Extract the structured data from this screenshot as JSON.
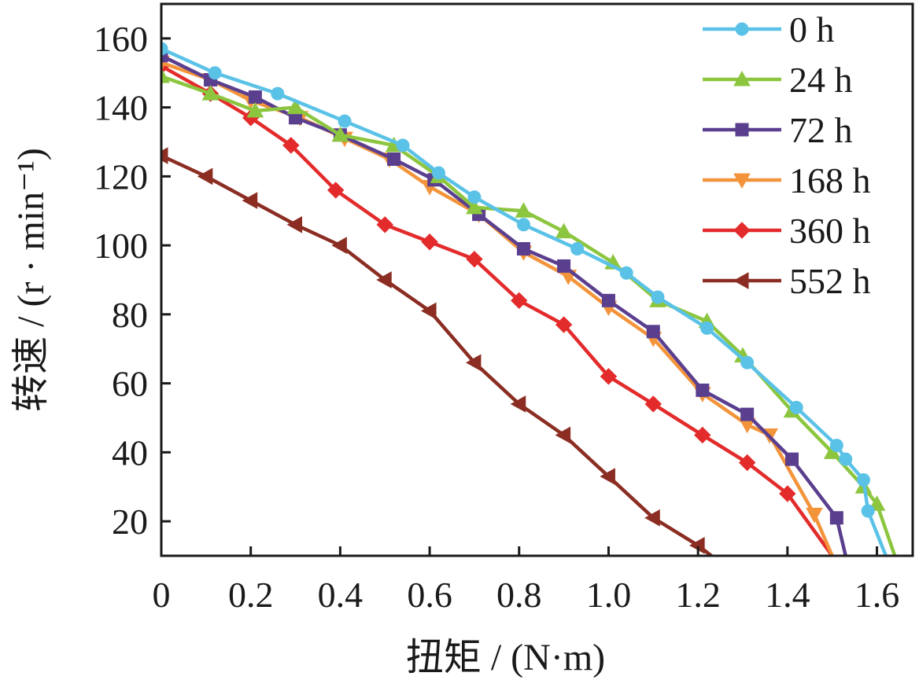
{
  "chart_data": {
    "type": "line",
    "xlabel": "扭矩 / (N·m)",
    "ylabel": "转速 / (r · min⁻¹)",
    "xlim": [
      0,
      1.68
    ],
    "ylim": [
      10,
      170
    ],
    "xticks": [
      0,
      0.2,
      0.4,
      0.6,
      0.8,
      1.0,
      1.2,
      1.4,
      1.6
    ],
    "xtick_labels": [
      "0",
      "0.2",
      "0.4",
      "0.6",
      "0.8",
      "1.0",
      "1.2",
      "1.4",
      "1.6"
    ],
    "yticks": [
      20,
      40,
      60,
      80,
      100,
      120,
      140,
      160
    ],
    "ytick_labels": [
      "20",
      "40",
      "60",
      "80",
      "100",
      "120",
      "140",
      "160"
    ],
    "grid": false,
    "legend_position": "top-right",
    "series": [
      {
        "name": "0 h",
        "color": "#5bc2e7",
        "marker": "circle",
        "points": [
          [
            0.0,
            157
          ],
          [
            0.12,
            150
          ],
          [
            0.26,
            144
          ],
          [
            0.41,
            136
          ],
          [
            0.54,
            129
          ],
          [
            0.62,
            121
          ],
          [
            0.7,
            114
          ],
          [
            0.81,
            106
          ],
          [
            0.93,
            99
          ],
          [
            1.04,
            92
          ],
          [
            1.11,
            85
          ],
          [
            1.22,
            76
          ],
          [
            1.31,
            66
          ],
          [
            1.42,
            53
          ],
          [
            1.51,
            42
          ],
          [
            1.53,
            38
          ],
          [
            1.57,
            32
          ],
          [
            1.58,
            23
          ],
          [
            1.62,
            10
          ]
        ]
      },
      {
        "name": "24 h",
        "color": "#8cc63f",
        "marker": "triangle-up",
        "points": [
          [
            0.0,
            149
          ],
          [
            0.11,
            144
          ],
          [
            0.21,
            139
          ],
          [
            0.3,
            140
          ],
          [
            0.4,
            132
          ],
          [
            0.52,
            129
          ],
          [
            0.62,
            120
          ],
          [
            0.7,
            111
          ],
          [
            0.81,
            110
          ],
          [
            0.9,
            104
          ],
          [
            1.01,
            95
          ],
          [
            1.11,
            84
          ],
          [
            1.22,
            78
          ],
          [
            1.3,
            68
          ],
          [
            1.41,
            52
          ],
          [
            1.5,
            40
          ],
          [
            1.57,
            30
          ],
          [
            1.6,
            25
          ],
          [
            1.64,
            10
          ]
        ]
      },
      {
        "name": "72 h",
        "color": "#5b3f8f",
        "marker": "square",
        "points": [
          [
            0.0,
            155
          ],
          [
            0.11,
            148
          ],
          [
            0.21,
            143
          ],
          [
            0.3,
            137
          ],
          [
            0.4,
            132
          ],
          [
            0.52,
            125
          ],
          [
            0.61,
            119
          ],
          [
            0.71,
            109
          ],
          [
            0.81,
            99
          ],
          [
            0.9,
            94
          ],
          [
            1.0,
            84
          ],
          [
            1.1,
            75
          ],
          [
            1.21,
            58
          ],
          [
            1.31,
            51
          ],
          [
            1.41,
            38
          ],
          [
            1.51,
            21
          ],
          [
            1.53,
            10
          ]
        ]
      },
      {
        "name": "168 h",
        "color": "#f3943b",
        "marker": "triangle-down",
        "points": [
          [
            0.0,
            153
          ],
          [
            0.11,
            148
          ],
          [
            0.2,
            142
          ],
          [
            0.31,
            137
          ],
          [
            0.41,
            131
          ],
          [
            0.51,
            125
          ],
          [
            0.6,
            117
          ],
          [
            0.71,
            109
          ],
          [
            0.81,
            98
          ],
          [
            0.91,
            91
          ],
          [
            1.0,
            82
          ],
          [
            1.1,
            73
          ],
          [
            1.21,
            57
          ],
          [
            1.31,
            48
          ],
          [
            1.36,
            45
          ],
          [
            1.46,
            22
          ],
          [
            1.5,
            10
          ]
        ]
      },
      {
        "name": "360 h",
        "color": "#e32b2b",
        "marker": "diamond",
        "points": [
          [
            0.0,
            152
          ],
          [
            0.11,
            144
          ],
          [
            0.2,
            137
          ],
          [
            0.29,
            129
          ],
          [
            0.39,
            116
          ],
          [
            0.5,
            106
          ],
          [
            0.6,
            101
          ],
          [
            0.7,
            96
          ],
          [
            0.8,
            84
          ],
          [
            0.9,
            77
          ],
          [
            1.0,
            62
          ],
          [
            1.1,
            54
          ],
          [
            1.21,
            45
          ],
          [
            1.31,
            37
          ],
          [
            1.4,
            28
          ],
          [
            1.5,
            10
          ]
        ]
      },
      {
        "name": "552 h",
        "color": "#8b2d22",
        "marker": "triangle-left",
        "points": [
          [
            0.0,
            126
          ],
          [
            0.1,
            120
          ],
          [
            0.2,
            113
          ],
          [
            0.3,
            106
          ],
          [
            0.4,
            100
          ],
          [
            0.5,
            90
          ],
          [
            0.6,
            81
          ],
          [
            0.7,
            66
          ],
          [
            0.8,
            54
          ],
          [
            0.9,
            45
          ],
          [
            1.0,
            33
          ],
          [
            1.1,
            21
          ],
          [
            1.2,
            13
          ],
          [
            1.23,
            10
          ]
        ]
      }
    ]
  }
}
